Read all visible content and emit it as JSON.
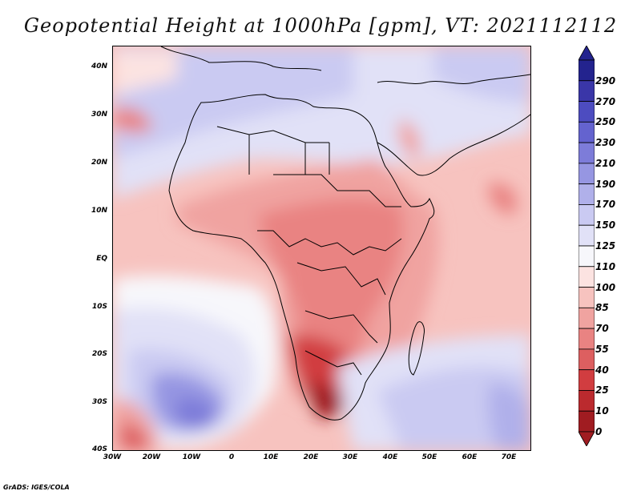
{
  "title": "Geopotential Height at 1000hPa [gpm], VT: 2021112112",
  "footer": "GrADS: IGES/COLA",
  "map": {
    "variable": "Geopotential Height at 1000hPa",
    "units": "gpm",
    "valid_time": "2021112112",
    "lat_labels": [
      "40N",
      "30N",
      "20N",
      "10N",
      "EQ",
      "10S",
      "20S",
      "30S",
      "40S"
    ],
    "lon_labels": [
      "30W",
      "20W",
      "10W",
      "0",
      "10E",
      "20E",
      "30E",
      "40E",
      "50E",
      "60E",
      "70E"
    ]
  },
  "colorbar": {
    "levels": [
      "290",
      "270",
      "250",
      "230",
      "210",
      "190",
      "170",
      "150",
      "125",
      "110",
      "100",
      "85",
      "70",
      "55",
      "40",
      "25",
      "10",
      "0"
    ],
    "colors": [
      "#23238e",
      "#3a36a8",
      "#4d4cc0",
      "#6463cf",
      "#7d7cd9",
      "#9696e2",
      "#b0b0ea",
      "#cacaf2",
      "#e1e1f7",
      "#f7f7fb",
      "#fce3e1",
      "#f7c3bf",
      "#f0a3a0",
      "#e98382",
      "#dd5f60",
      "#d13d40",
      "#bb2a2e",
      "#a01c21"
    ]
  }
}
